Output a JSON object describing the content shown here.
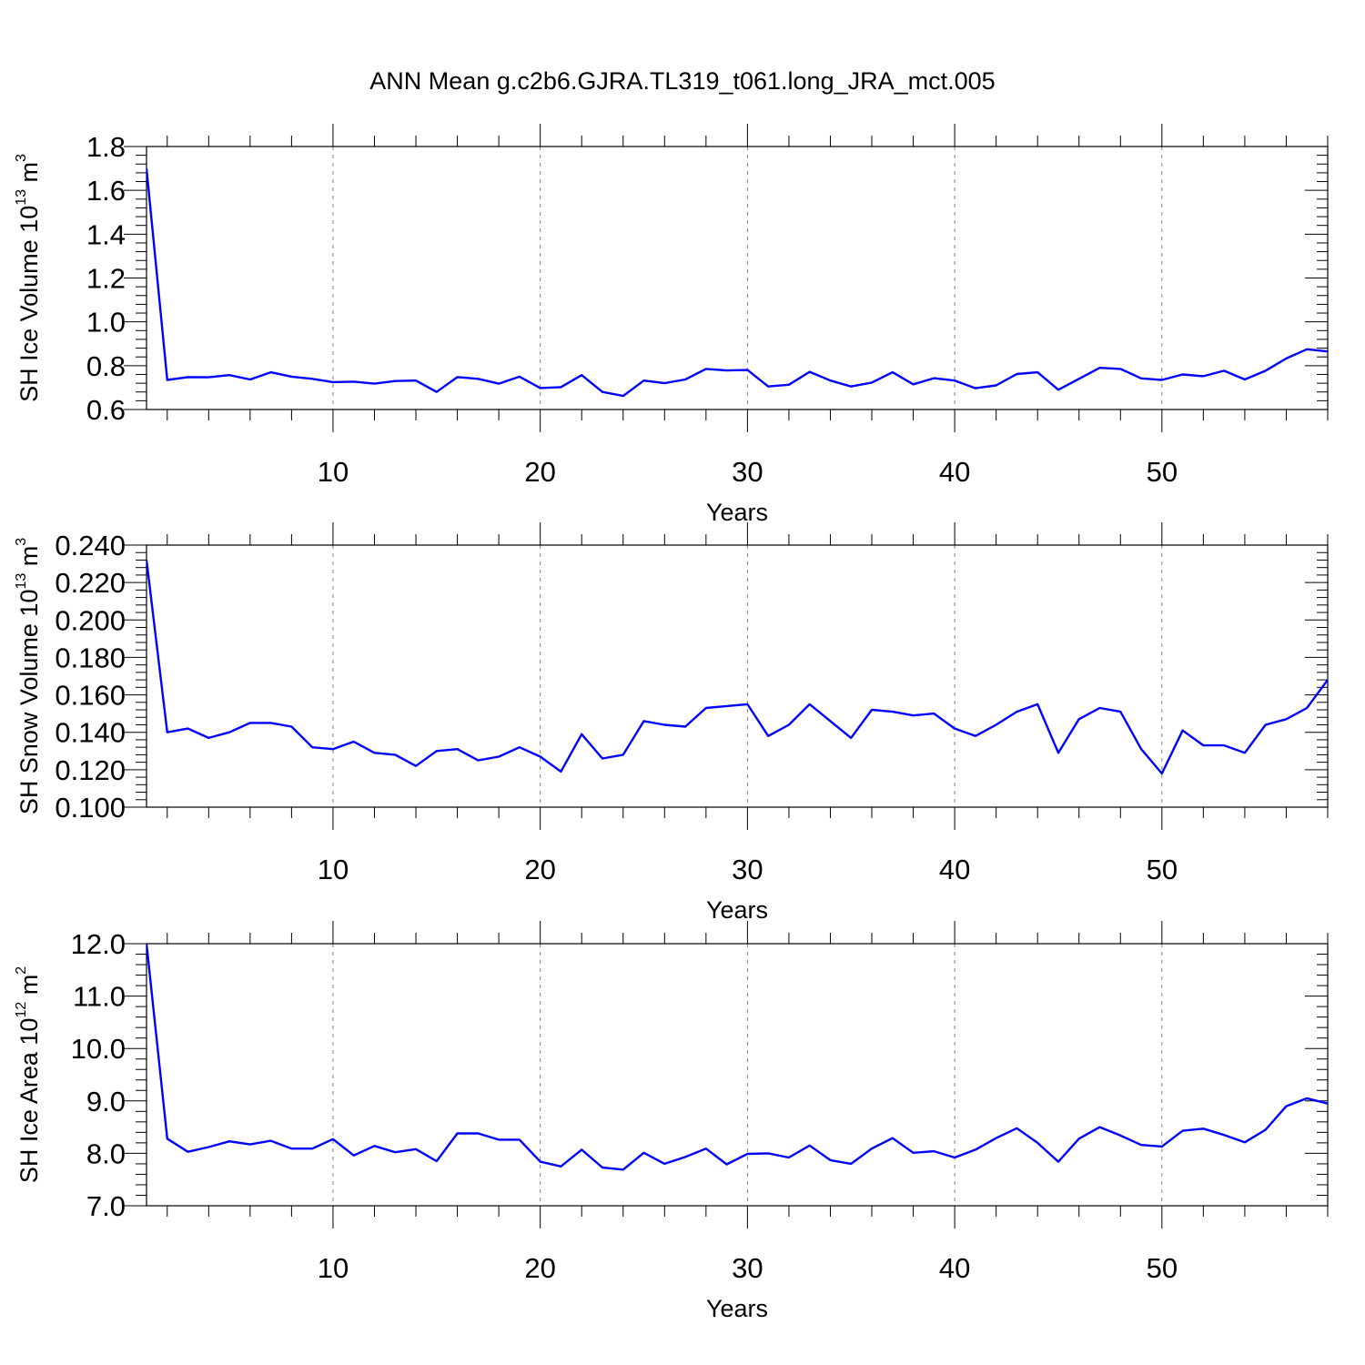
{
  "title": "ANN Mean g.c2b6.GJRA.TL319_t061.long_JRA_mct.005",
  "colors": {
    "line": "#0000ff",
    "axis": "#000000",
    "grid": "#808080"
  },
  "chart_data": [
    {
      "type": "line",
      "xlabel": "Years",
      "ylabel": {
        "text": "SH Ice Volume 10",
        "sup": "13",
        "unit": " m",
        "unit_sup": "3"
      },
      "xlim": [
        1,
        58
      ],
      "ylim": [
        0.6,
        1.8
      ],
      "xticks": [
        10,
        20,
        30,
        40,
        50
      ],
      "xtick_labels": [
        "10",
        "20",
        "30",
        "40",
        "50"
      ],
      "yticks": [
        0.6,
        0.8,
        1.0,
        1.2,
        1.4,
        1.6,
        1.8
      ],
      "ytick_labels": [
        "0.6",
        "0.8",
        "1.0",
        "1.2",
        "1.4",
        "1.6",
        "1.8"
      ],
      "grid": "vertical dashed at major x ticks",
      "series": [
        {
          "x": [
            1,
            2,
            3,
            4,
            5,
            6,
            7,
            8,
            9,
            10,
            11,
            12,
            13,
            14,
            15,
            16,
            17,
            18,
            19,
            20,
            21,
            22,
            23,
            24,
            25,
            26,
            27,
            28,
            29,
            30,
            31,
            32,
            33,
            34,
            35,
            36,
            37,
            38,
            39,
            40,
            41,
            42,
            43,
            44,
            45,
            46,
            47,
            48,
            49,
            50,
            51,
            52,
            53,
            54,
            55,
            56,
            57,
            58
          ],
          "values": [
            1.7,
            0.735,
            0.748,
            0.747,
            0.757,
            0.737,
            0.77,
            0.75,
            0.74,
            0.725,
            0.727,
            0.718,
            0.73,
            0.732,
            0.68,
            0.748,
            0.74,
            0.718,
            0.75,
            0.698,
            0.702,
            0.757,
            0.68,
            0.662,
            0.732,
            0.72,
            0.737,
            0.785,
            0.778,
            0.78,
            0.705,
            0.713,
            0.772,
            0.732,
            0.705,
            0.723,
            0.77,
            0.715,
            0.743,
            0.732,
            0.697,
            0.71,
            0.762,
            0.77,
            0.69,
            0.74,
            0.79,
            0.785,
            0.742,
            0.735,
            0.76,
            0.752,
            0.777,
            0.737,
            0.777,
            0.833,
            0.875,
            0.865
          ]
        }
      ]
    },
    {
      "type": "line",
      "xlabel": "Years",
      "ylabel": {
        "text": "SH Snow Volume 10",
        "sup": "13",
        "unit": " m",
        "unit_sup": "3"
      },
      "xlim": [
        1,
        58
      ],
      "ylim": [
        0.1,
        0.24
      ],
      "xticks": [
        10,
        20,
        30,
        40,
        50
      ],
      "xtick_labels": [
        "10",
        "20",
        "30",
        "40",
        "50"
      ],
      "yticks": [
        0.1,
        0.12,
        0.14,
        0.16,
        0.18,
        0.2,
        0.22,
        0.24
      ],
      "ytick_labels": [
        "0.100",
        "0.120",
        "0.140",
        "0.160",
        "0.180",
        "0.200",
        "0.220",
        "0.240"
      ],
      "grid": "vertical dashed at major x ticks",
      "series": [
        {
          "x": [
            1,
            2,
            3,
            4,
            5,
            6,
            7,
            8,
            9,
            10,
            11,
            12,
            13,
            14,
            15,
            16,
            17,
            18,
            19,
            20,
            21,
            22,
            23,
            24,
            25,
            26,
            27,
            28,
            29,
            30,
            31,
            32,
            33,
            34,
            35,
            36,
            37,
            38,
            39,
            40,
            41,
            42,
            43,
            44,
            45,
            46,
            47,
            48,
            49,
            50,
            51,
            52,
            53,
            54,
            55,
            56,
            57,
            58
          ],
          "values": [
            0.232,
            0.14,
            0.142,
            0.137,
            0.14,
            0.145,
            0.145,
            0.143,
            0.132,
            0.131,
            0.135,
            0.129,
            0.128,
            0.122,
            0.13,
            0.131,
            0.125,
            0.127,
            0.132,
            0.127,
            0.119,
            0.139,
            0.126,
            0.128,
            0.146,
            0.144,
            0.143,
            0.153,
            0.154,
            0.155,
            0.138,
            0.144,
            0.155,
            0.146,
            0.137,
            0.152,
            0.151,
            0.149,
            0.15,
            0.142,
            0.138,
            0.144,
            0.151,
            0.155,
            0.129,
            0.147,
            0.153,
            0.151,
            0.131,
            0.118,
            0.141,
            0.133,
            0.133,
            0.129,
            0.144,
            0.147,
            0.153,
            0.168
          ]
        }
      ]
    },
    {
      "type": "line",
      "xlabel": "Years",
      "ylabel": {
        "text": "SH Ice Area 10",
        "sup": "12",
        "unit": " m",
        "unit_sup": "2"
      },
      "xlim": [
        1,
        58
      ],
      "ylim": [
        7.0,
        12.0
      ],
      "xticks": [
        10,
        20,
        30,
        40,
        50
      ],
      "xtick_labels": [
        "10",
        "20",
        "30",
        "40",
        "50"
      ],
      "yticks": [
        7.0,
        8.0,
        9.0,
        10.0,
        11.0,
        12.0
      ],
      "ytick_labels": [
        "7.0",
        "8.0",
        "9.0",
        "10.0",
        "11.0",
        "12.0"
      ],
      "grid": "vertical dashed at major x ticks",
      "series": [
        {
          "x": [
            1,
            2,
            3,
            4,
            5,
            6,
            7,
            8,
            9,
            10,
            11,
            12,
            13,
            14,
            15,
            16,
            17,
            18,
            19,
            20,
            21,
            22,
            23,
            24,
            25,
            26,
            27,
            28,
            29,
            30,
            31,
            32,
            33,
            34,
            35,
            36,
            37,
            38,
            39,
            40,
            41,
            42,
            43,
            44,
            45,
            46,
            47,
            48,
            49,
            50,
            51,
            52,
            53,
            54,
            55,
            56,
            57,
            58
          ],
          "values": [
            12.0,
            8.28,
            8.03,
            8.12,
            8.23,
            8.17,
            8.24,
            8.09,
            8.09,
            8.27,
            7.96,
            8.14,
            8.02,
            8.08,
            7.85,
            8.38,
            8.38,
            8.26,
            8.26,
            7.84,
            7.75,
            8.07,
            7.73,
            7.69,
            8.01,
            7.8,
            7.93,
            8.09,
            7.79,
            7.99,
            8.0,
            7.92,
            8.15,
            7.87,
            7.8,
            8.09,
            8.29,
            8.01,
            8.04,
            7.92,
            8.07,
            8.29,
            8.48,
            8.2,
            7.84,
            8.28,
            8.5,
            8.34,
            8.16,
            8.13,
            8.43,
            8.47,
            8.35,
            8.21,
            8.45,
            8.9,
            9.05,
            8.95
          ]
        }
      ]
    }
  ]
}
